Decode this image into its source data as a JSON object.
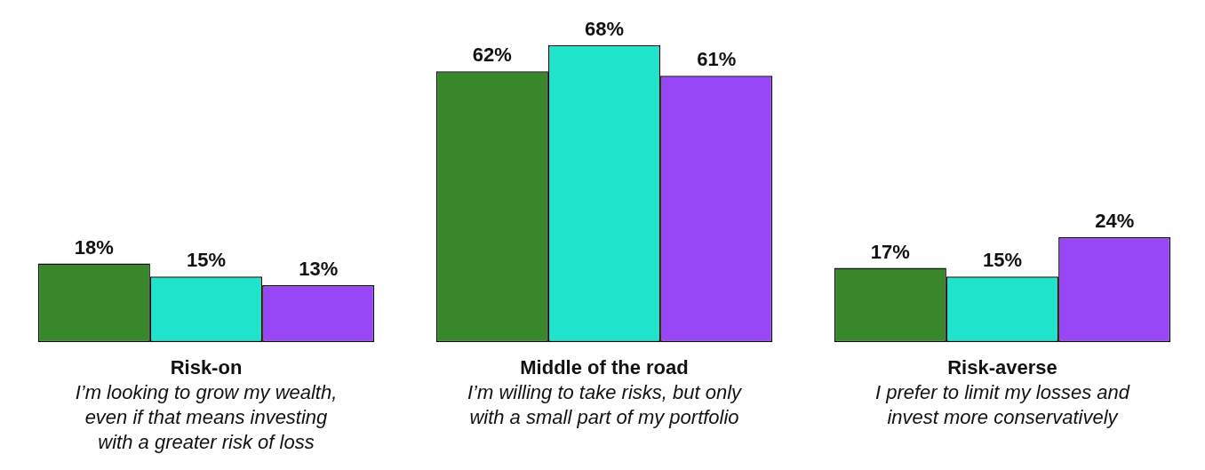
{
  "chart_data": {
    "type": "bar",
    "categories": [
      "Risk-on\nI’m looking to grow my wealth,\neven if that means investing\nwith a greater risk of loss",
      "Middle of the road\nI’m willing to take risks, but only\nwith a small part of my portfolio",
      "Risk-averse\nI prefer to limit my losses and\ninvest more conservatively"
    ],
    "series": [
      {
        "color": "#38872a",
        "values": [
          18,
          62,
          17
        ],
        "value_labels": [
          "18%",
          "62%",
          "17%"
        ]
      },
      {
        "color": "#20e3cc",
        "values": [
          15,
          68,
          15
        ],
        "value_labels": [
          "15%",
          "68%",
          "15%"
        ]
      },
      {
        "color": "#9747f5",
        "values": [
          13,
          61,
          24
        ],
        "value_labels": [
          "13%",
          "61%",
          "24%"
        ]
      }
    ],
    "tick_labels": "x",
    "legend": false
  }
}
